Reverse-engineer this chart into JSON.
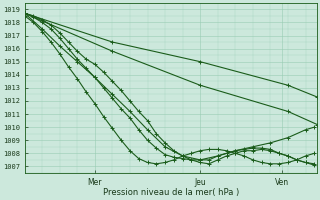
{
  "title": "Pression niveau de la mer( hPa )",
  "ylabel_values": [
    1007,
    1008,
    1009,
    1010,
    1011,
    1012,
    1013,
    1014,
    1015,
    1016,
    1017,
    1018,
    1019
  ],
  "ylim": [
    1006.5,
    1019.5
  ],
  "xlim": [
    0,
    100
  ],
  "x_ticks": [
    24,
    60,
    88
  ],
  "x_tick_labels": [
    "Mer",
    "Jeu",
    "Ven"
  ],
  "background_color": "#cce8dc",
  "grid_color": "#99ccb3",
  "line_color": "#1a5c1a",
  "marker": "+",
  "markersize": 3.5,
  "linewidth": 0.8,
  "series": [
    {
      "x": [
        0,
        30,
        60,
        90,
        100
      ],
      "y": [
        1018.7,
        1016.5,
        1015.0,
        1013.2,
        1012.3
      ],
      "marker_every": 1
    },
    {
      "x": [
        0,
        30,
        60,
        90,
        100
      ],
      "y": [
        1018.7,
        1015.8,
        1013.2,
        1011.2,
        1010.2
      ],
      "marker_every": 1
    },
    {
      "x": [
        0,
        3,
        6,
        9,
        12,
        15,
        18,
        21,
        24,
        27,
        30,
        33,
        36,
        39,
        42,
        45,
        48,
        51,
        54,
        57,
        60,
        63,
        66,
        69,
        72,
        75,
        78,
        81,
        84,
        87,
        90,
        93,
        96,
        99
      ],
      "y": [
        1018.7,
        1018.5,
        1018.2,
        1017.8,
        1017.2,
        1016.5,
        1015.8,
        1015.2,
        1014.8,
        1014.2,
        1013.5,
        1012.8,
        1012.0,
        1011.2,
        1010.5,
        1009.5,
        1008.8,
        1008.2,
        1007.8,
        1007.5,
        1007.3,
        1007.2,
        1007.5,
        1007.8,
        1008.0,
        1008.2,
        1008.2,
        1008.3,
        1008.2,
        1008.0,
        1007.8,
        1007.5,
        1007.3,
        1007.2
      ],
      "marker_every": 1
    },
    {
      "x": [
        0,
        3,
        6,
        9,
        12,
        15,
        18,
        21,
        24,
        27,
        30,
        33,
        36,
        39,
        42,
        45,
        48,
        51,
        54,
        57,
        60,
        63,
        66,
        69,
        72,
        75,
        78,
        81,
        84,
        87,
        90,
        93,
        96,
        99
      ],
      "y": [
        1018.7,
        1018.4,
        1018.0,
        1017.5,
        1016.8,
        1016.0,
        1015.2,
        1014.5,
        1013.8,
        1013.0,
        1012.2,
        1011.4,
        1010.7,
        1009.8,
        1009.0,
        1008.4,
        1007.9,
        1007.7,
        1007.6,
        1007.5,
        1007.5,
        1007.5,
        1007.8,
        1008.0,
        1008.2,
        1008.3,
        1008.4,
        1008.4,
        1008.3,
        1008.0,
        1007.8,
        1007.5,
        1007.3,
        1007.1
      ],
      "marker_every": 1
    },
    {
      "x": [
        0,
        3,
        6,
        9,
        12,
        15,
        18,
        21,
        24,
        27,
        30,
        33,
        36,
        39,
        42,
        45,
        48,
        51,
        54,
        57,
        60,
        63,
        66,
        69,
        72,
        75,
        78,
        81,
        84,
        87,
        90,
        93,
        96,
        99
      ],
      "y": [
        1018.5,
        1018.0,
        1017.3,
        1016.5,
        1015.6,
        1014.6,
        1013.7,
        1012.7,
        1011.8,
        1010.8,
        1009.9,
        1009.0,
        1008.2,
        1007.6,
        1007.3,
        1007.2,
        1007.3,
        1007.5,
        1007.8,
        1008.0,
        1008.2,
        1008.3,
        1008.3,
        1008.2,
        1008.0,
        1007.8,
        1007.5,
        1007.3,
        1007.2,
        1007.2,
        1007.3,
        1007.5,
        1007.8,
        1008.0
      ],
      "marker_every": 1
    },
    {
      "x": [
        0,
        6,
        12,
        18,
        24,
        30,
        36,
        42,
        48,
        54,
        60,
        66,
        72,
        78,
        84,
        90,
        96,
        99
      ],
      "y": [
        1018.7,
        1017.5,
        1016.2,
        1015.0,
        1013.8,
        1012.5,
        1011.2,
        1009.8,
        1008.5,
        1007.8,
        1007.5,
        1007.8,
        1008.2,
        1008.5,
        1008.8,
        1009.2,
        1009.8,
        1010.0
      ],
      "marker_every": 1
    }
  ]
}
